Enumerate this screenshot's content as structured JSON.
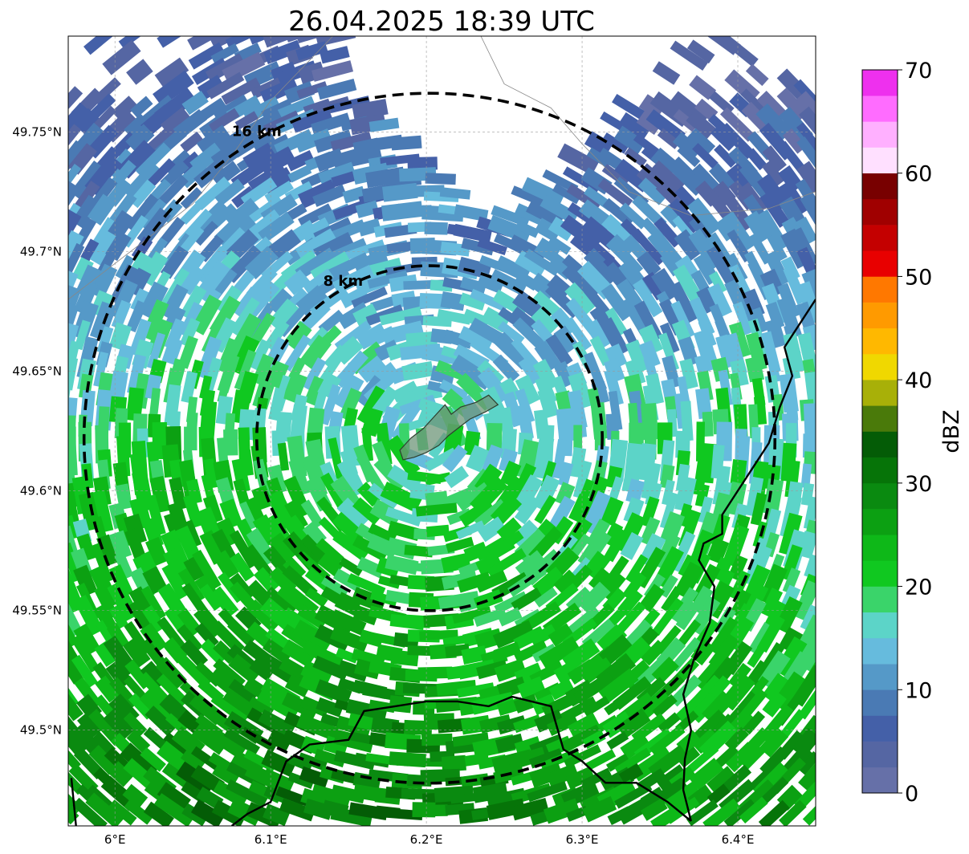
{
  "title": "26.04.2025 18:39 UTC",
  "map": {
    "lon_range": [
      5.97,
      6.45
    ],
    "lat_range": [
      49.46,
      49.79
    ],
    "lon_ticks": [
      {
        "value": 6.0,
        "label": "6°E"
      },
      {
        "value": 6.1,
        "label": "6.1°E"
      },
      {
        "value": 6.2,
        "label": "6.2°E"
      },
      {
        "value": 6.3,
        "label": "6.3°E"
      },
      {
        "value": 6.4,
        "label": "6.4°E"
      }
    ],
    "lat_ticks": [
      {
        "value": 49.75,
        "label": "49.75°N"
      },
      {
        "value": 49.7,
        "label": "49.7°N"
      },
      {
        "value": 49.65,
        "label": "49.65°N"
      },
      {
        "value": 49.6,
        "label": "49.6°N"
      },
      {
        "value": 49.55,
        "label": "49.55°N"
      },
      {
        "value": 49.5,
        "label": "49.5°N"
      }
    ],
    "grid": true,
    "center": {
      "lon": 6.202,
      "lat": 49.622
    },
    "range_rings": [
      {
        "radius_km": 8,
        "label": "8 km"
      },
      {
        "radius_km": 16,
        "label": "16 km"
      }
    ],
    "city_outline": [
      [
        6.183,
        49.617
      ],
      [
        6.19,
        49.622
      ],
      [
        6.198,
        49.626
      ],
      [
        6.205,
        49.631
      ],
      [
        6.212,
        49.636
      ],
      [
        6.216,
        49.632
      ],
      [
        6.222,
        49.635
      ],
      [
        6.232,
        49.637
      ],
      [
        6.24,
        49.64
      ],
      [
        6.246,
        49.636
      ],
      [
        6.238,
        49.633
      ],
      [
        6.228,
        49.63
      ],
      [
        6.222,
        49.627
      ],
      [
        6.214,
        49.623
      ],
      [
        6.208,
        49.619
      ],
      [
        6.2,
        49.616
      ],
      [
        6.192,
        49.614
      ],
      [
        6.185,
        49.613
      ]
    ],
    "border_east": [
      [
        6.45,
        49.68
      ],
      [
        6.43,
        49.66
      ],
      [
        6.435,
        49.648
      ],
      [
        6.427,
        49.635
      ],
      [
        6.42,
        49.62
      ],
      [
        6.41,
        49.61
      ],
      [
        6.4,
        49.6
      ],
      [
        6.39,
        49.59
      ],
      [
        6.39,
        49.582
      ],
      [
        6.378,
        49.578
      ],
      [
        6.375,
        49.571
      ],
      [
        6.385,
        49.56
      ],
      [
        6.382,
        49.545
      ],
      [
        6.372,
        49.53
      ],
      [
        6.365,
        49.515
      ],
      [
        6.37,
        49.5
      ],
      [
        6.366,
        49.488
      ],
      [
        6.365,
        49.475
      ],
      [
        6.37,
        49.462
      ]
    ],
    "border_south": [
      [
        6.37,
        49.462
      ],
      [
        6.355,
        49.47
      ],
      [
        6.335,
        49.478
      ],
      [
        6.315,
        49.478
      ],
      [
        6.3,
        49.487
      ],
      [
        6.288,
        49.492
      ],
      [
        6.28,
        49.51
      ],
      [
        6.255,
        49.514
      ],
      [
        6.24,
        49.51
      ],
      [
        6.22,
        49.512
      ],
      [
        6.2,
        49.512
      ],
      [
        6.18,
        49.51
      ],
      [
        6.16,
        49.508
      ],
      [
        6.15,
        49.496
      ],
      [
        6.125,
        49.494
      ],
      [
        6.11,
        49.487
      ],
      [
        6.1,
        49.47
      ],
      [
        6.085,
        49.465
      ],
      [
        6.075,
        49.46
      ]
    ],
    "border_west": [
      [
        5.972,
        49.48
      ],
      [
        5.975,
        49.46
      ]
    ],
    "thin_borders": [
      [
        [
          6.14,
          49.79
        ],
        [
          6.1,
          49.763
        ],
        [
          6.075,
          49.74
        ],
        [
          6.05,
          49.72
        ],
        [
          6.02,
          49.705
        ],
        [
          5.99,
          49.69
        ],
        [
          5.97,
          49.68
        ]
      ],
      [
        [
          6.235,
          49.79
        ],
        [
          6.25,
          49.77
        ],
        [
          6.28,
          49.76
        ],
        [
          6.3,
          49.745
        ],
        [
          6.33,
          49.725
        ],
        [
          6.37,
          49.715
        ],
        [
          6.42,
          49.718
        ],
        [
          6.45,
          49.725
        ]
      ]
    ]
  },
  "colorbar": {
    "label": "dBZ",
    "min": 0,
    "max": 70,
    "step": 2.5,
    "ticks": [
      0,
      10,
      20,
      30,
      40,
      50,
      60,
      70
    ],
    "colors": [
      "#6670a8",
      "#5566a3",
      "#4460a8",
      "#4a7ab4",
      "#5599c8",
      "#66bbdd",
      "#5cd4c8",
      "#3ad46a",
      "#10c820",
      "#0eb818",
      "#0ca012",
      "#0a8a10",
      "#067408",
      "#045c06",
      "#4a7a0a",
      "#a8b008",
      "#f0d800",
      "#ffb800",
      "#ff9a00",
      "#ff7800",
      "#e80000",
      "#c40000",
      "#a00000",
      "#780000",
      "#ffe0ff",
      "#ffb0ff",
      "#ff6cff",
      "#ee30ee"
    ]
  }
}
